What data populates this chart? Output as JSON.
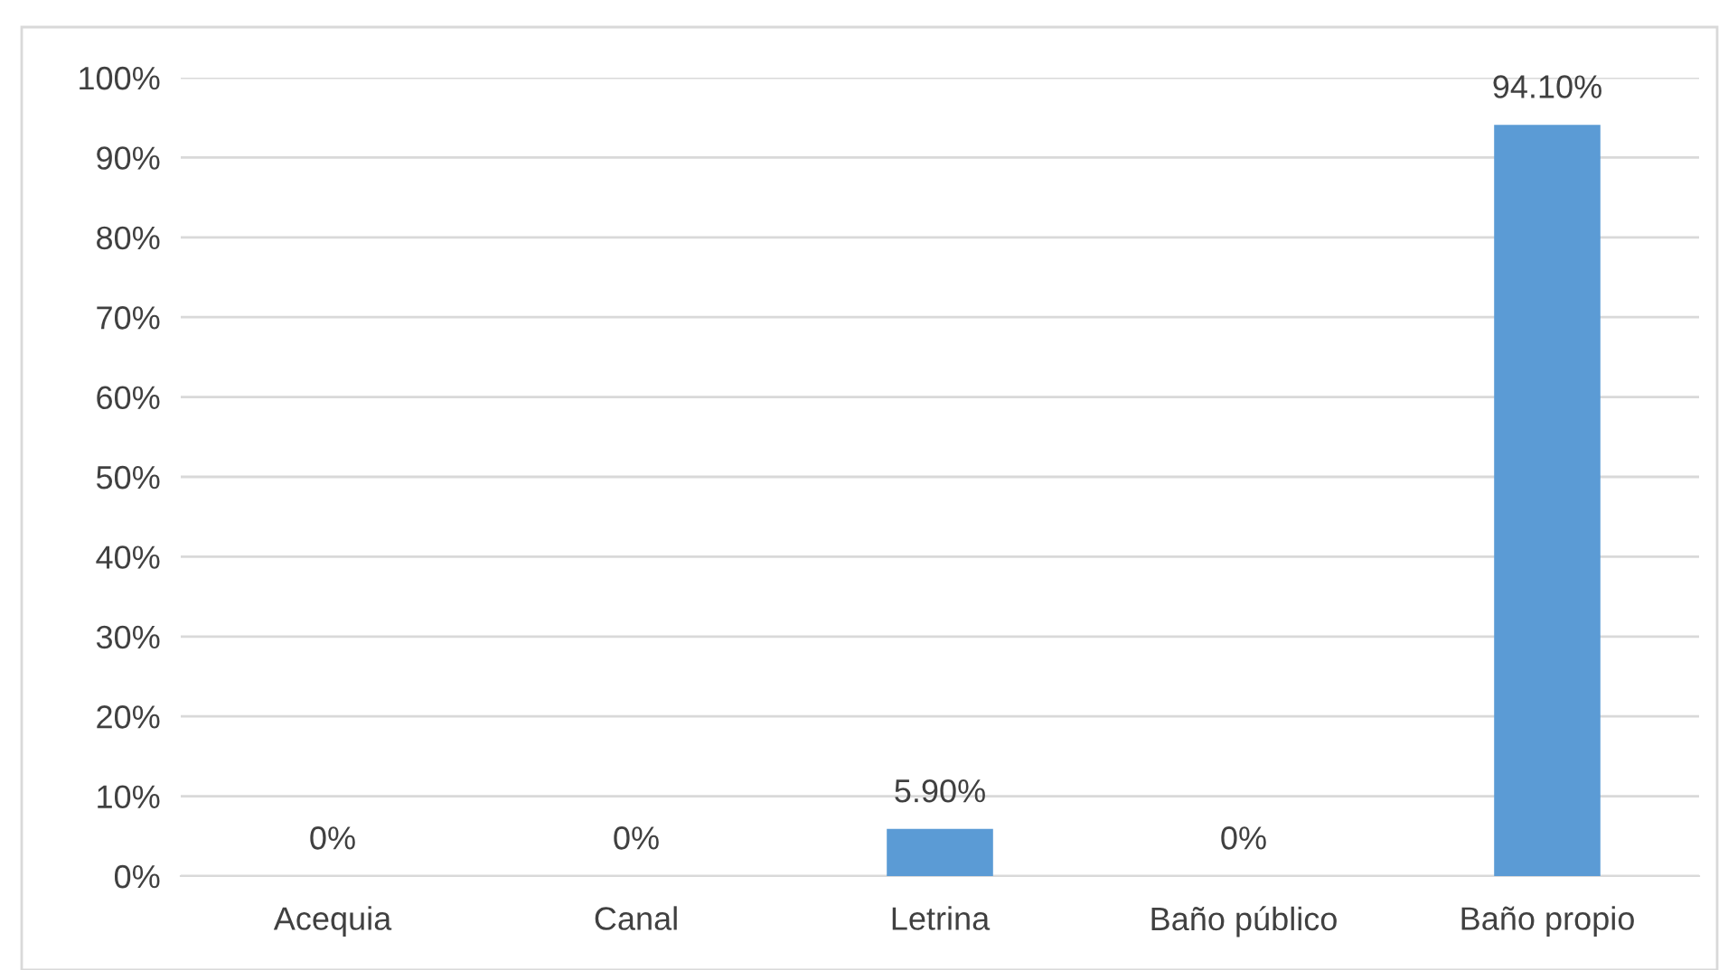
{
  "chart_data": {
    "type": "bar",
    "categories": [
      "Acequia",
      "Canal",
      "Letrina",
      "Baño público",
      "Baño propio"
    ],
    "values": [
      0,
      0,
      5.9,
      0,
      94.1
    ],
    "value_labels": [
      "0%",
      "0%",
      "5.90%",
      "0%",
      "94.10%"
    ],
    "color": "#5b9bd5",
    "ylim": [
      0,
      100
    ],
    "yticks": [
      {
        "value": 0,
        "label": "0%"
      },
      {
        "value": 10,
        "label": "10%"
      },
      {
        "value": 20,
        "label": "20%"
      },
      {
        "value": 30,
        "label": "30%"
      },
      {
        "value": 40,
        "label": "40%"
      },
      {
        "value": 50,
        "label": "50%"
      },
      {
        "value": 60,
        "label": "60%"
      },
      {
        "value": 70,
        "label": "70%"
      },
      {
        "value": 80,
        "label": "80%"
      },
      {
        "value": 90,
        "label": "90%"
      },
      {
        "value": 100,
        "label": "100%"
      }
    ],
    "grid": "y",
    "legend": false
  }
}
